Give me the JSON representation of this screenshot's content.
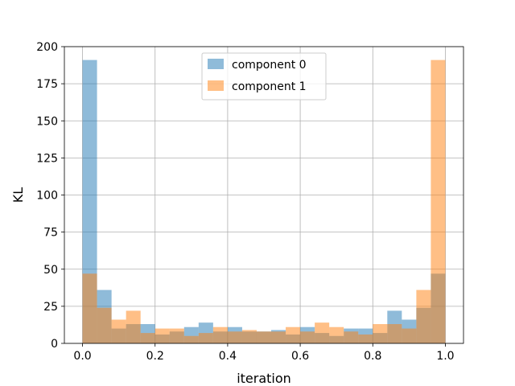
{
  "chart_data": {
    "type": "bar",
    "subtype": "overlapping-histogram",
    "xlabel": "iteration",
    "ylabel": "KL",
    "xlim": [
      -0.05,
      1.05
    ],
    "ylim": [
      0,
      200
    ],
    "xticks": [
      0.0,
      0.2,
      0.4,
      0.6,
      0.8,
      1.0
    ],
    "xtick_labels": [
      "0.0",
      "0.2",
      "0.4",
      "0.6",
      "0.8",
      "1.0"
    ],
    "yticks": [
      0,
      25,
      50,
      75,
      100,
      125,
      150,
      175,
      200
    ],
    "ytick_labels": [
      "0",
      "25",
      "50",
      "75",
      "100",
      "125",
      "150",
      "175",
      "200"
    ],
    "grid": true,
    "legend_position": "upper center",
    "bin_edges": [
      0.0,
      0.04,
      0.08,
      0.12,
      0.16,
      0.2,
      0.24,
      0.28,
      0.32,
      0.36,
      0.4,
      0.44,
      0.48,
      0.52,
      0.56,
      0.6,
      0.64,
      0.68,
      0.72,
      0.76,
      0.8,
      0.84,
      0.88,
      0.92,
      0.96,
      1.0
    ],
    "series": [
      {
        "name": "component 0",
        "color": "#1f77b4",
        "alpha": 0.5,
        "values": [
          191,
          36,
          10,
          13,
          13,
          6,
          8,
          11,
          14,
          8,
          11,
          8,
          8,
          9,
          6,
          11,
          7,
          5,
          10,
          10,
          7,
          22,
          16,
          24,
          47
        ]
      },
      {
        "name": "component 1",
        "color": "#ff7f0e",
        "alpha": 0.5,
        "values": [
          47,
          24,
          16,
          22,
          7,
          10,
          10,
          5,
          7,
          11,
          8,
          9,
          8,
          8,
          11,
          8,
          14,
          11,
          8,
          6,
          13,
          13,
          10,
          36,
          191
        ]
      }
    ]
  }
}
